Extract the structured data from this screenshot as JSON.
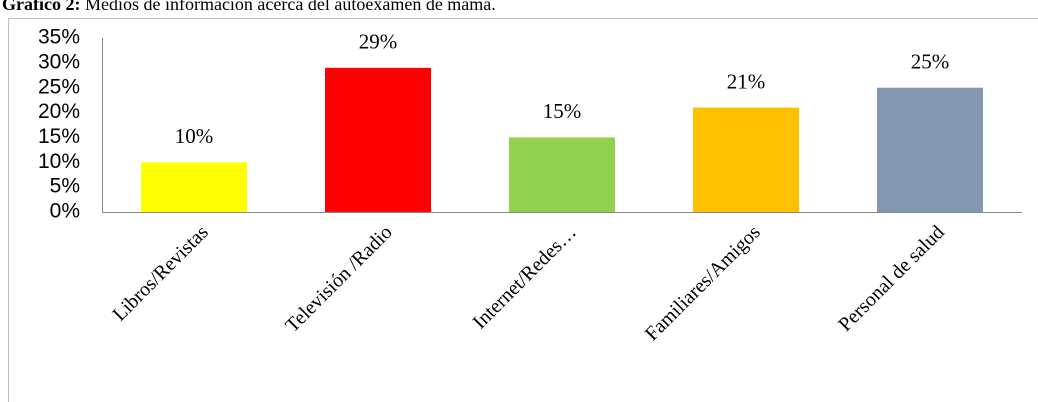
{
  "chart_data": {
    "type": "bar",
    "title_label": "Gráfico 2:",
    "title": "Medios de información acerca del autoexamen de mama.",
    "categories": [
      "Libros/Revistas",
      "Televisión /Radio",
      "Internet/Redes…",
      "Familiares/Amigos",
      "Personal de salud"
    ],
    "values": [
      10,
      29,
      15,
      21,
      25
    ],
    "value_labels": [
      "10%",
      "29%",
      "15%",
      "21%",
      "25%"
    ],
    "colors": [
      "#ffff00",
      "#ff0000",
      "#92d050",
      "#ffc000",
      "#8497b0"
    ],
    "ylim": [
      0,
      35
    ],
    "yticks": [
      {
        "value": 0,
        "label": "0%"
      },
      {
        "value": 5,
        "label": "5%"
      },
      {
        "value": 10,
        "label": "10%"
      },
      {
        "value": 15,
        "label": "15%"
      },
      {
        "value": 20,
        "label": "20%"
      },
      {
        "value": 25,
        "label": "25%"
      },
      {
        "value": 30,
        "label": "30%"
      },
      {
        "value": 35,
        "label": "35%"
      }
    ],
    "grid": false
  }
}
